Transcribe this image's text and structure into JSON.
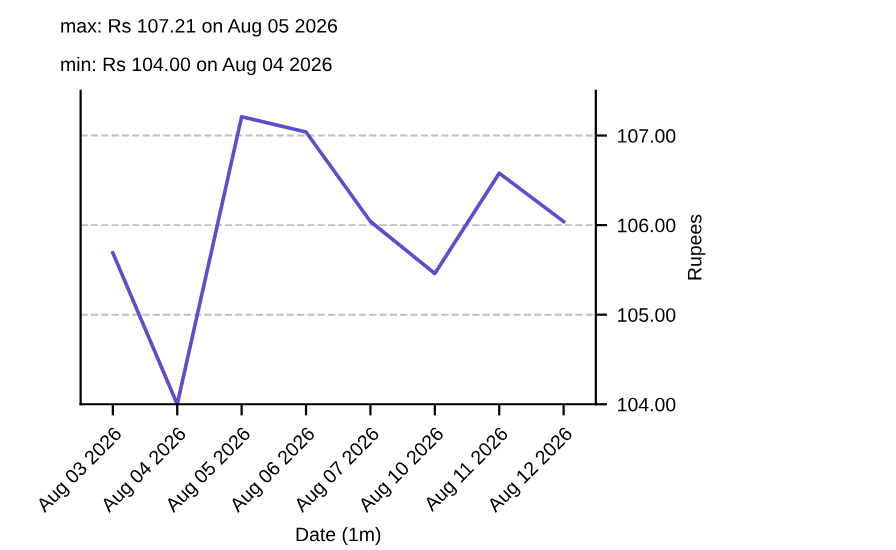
{
  "chart_data": {
    "type": "line",
    "annotations": [
      "max: Rs 107.21 on Aug 05 2026",
      "min: Rs 104.00 on Aug 04 2026"
    ],
    "xlabel": "Date (1m)",
    "ylabel": "Rupees",
    "categories": [
      "Aug 03 2026",
      "Aug 04 2026",
      "Aug 05 2026",
      "Aug 06 2026",
      "Aug 07 2026",
      "Aug 10 2026",
      "Aug 11 2026",
      "Aug 12 2026"
    ],
    "series": [
      {
        "color": "#5b4fcf",
        "values": [
          105.69,
          104.0,
          107.21,
          107.04,
          106.04,
          105.46,
          106.58,
          106.04
        ]
      }
    ],
    "ylim": [
      104,
      107.5
    ],
    "yticks": [
      {
        "value": 104,
        "label": "104.00"
      },
      {
        "value": 105,
        "label": "105.00"
      },
      {
        "value": 106,
        "label": "106.00"
      },
      {
        "value": 107,
        "label": "107.00"
      }
    ],
    "grid": "y",
    "line_style": "solid"
  }
}
